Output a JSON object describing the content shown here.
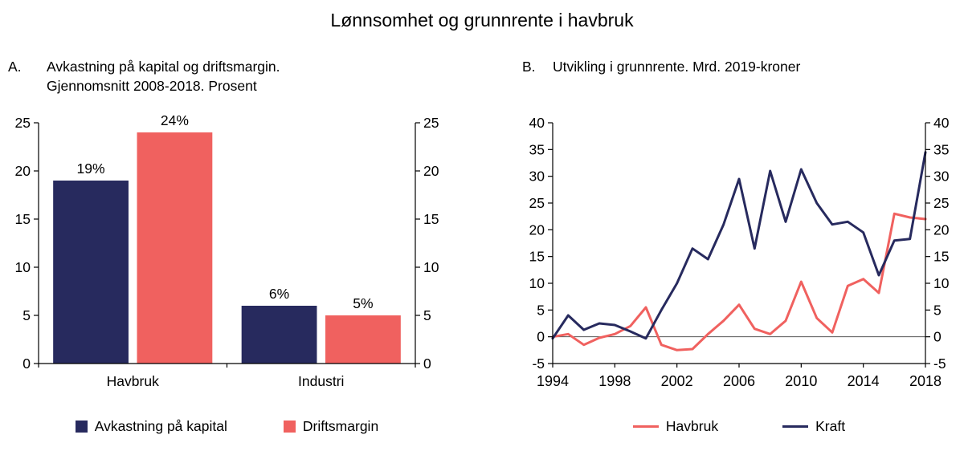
{
  "figure": {
    "title": "Lønnsomhet og grunnrente i havbruk",
    "panel_a": {
      "label": "A.",
      "heading_line1": "Avkastning på kapital og driftsmargin.",
      "heading_line2": "Gjennomsnitt 2008-2018. Prosent"
    },
    "panel_b": {
      "label": "B.",
      "heading": "Utvikling i grunnrente. Mrd. 2019-kroner"
    }
  },
  "colors": {
    "navy": "#272a5e",
    "coral": "#f0615f",
    "axis": "#000000",
    "zero_line": "#555555",
    "text": "#000000"
  },
  "chart_data": [
    {
      "type": "bar",
      "panel": "A",
      "title": "Avkastning på kapital og driftsmargin. Gjennomsnitt 2008-2018. Prosent",
      "categories": [
        "Havbruk",
        "Industri"
      ],
      "series": [
        {
          "name": "Avkastning på kapital",
          "color": "#272a5e",
          "values": [
            19,
            6
          ]
        },
        {
          "name": "Driftsmargin",
          "color": "#f0615f",
          "values": [
            24,
            5
          ]
        }
      ],
      "value_label_suffix": "%",
      "value_labels": [
        [
          "19%",
          "6%"
        ],
        [
          "24%",
          "5%"
        ]
      ],
      "ylim": [
        0,
        25
      ],
      "yticks": [
        0,
        5,
        10,
        15,
        20,
        25
      ],
      "yaxis_sides": "both",
      "legend_position": "bottom"
    },
    {
      "type": "line",
      "panel": "B",
      "title": "Utvikling i grunnrente. Mrd. 2019-kroner",
      "x": [
        1994,
        1995,
        1996,
        1997,
        1998,
        1999,
        2000,
        2001,
        2002,
        2003,
        2004,
        2005,
        2006,
        2007,
        2008,
        2009,
        2010,
        2011,
        2012,
        2013,
        2014,
        2015,
        2016,
        2017,
        2018
      ],
      "series": [
        {
          "name": "Havbruk",
          "color": "#f0615f",
          "values": [
            0,
            0.5,
            -1.5,
            -0.2,
            0.5,
            2,
            5.5,
            -1.5,
            -2.5,
            -2.3,
            0.5,
            3,
            6,
            1.5,
            0.5,
            3,
            10.3,
            3.5,
            0.8,
            9.5,
            10.8,
            8.2,
            23,
            22.3,
            22
          ]
        },
        {
          "name": "Kraft",
          "color": "#272a5e",
          "values": [
            -0.3,
            4,
            1.3,
            2.5,
            2.2,
            1,
            -0.3,
            5,
            10,
            16.5,
            14.5,
            21,
            29.5,
            16.5,
            31,
            21.5,
            31.3,
            25,
            21,
            21.5,
            19.5,
            11.5,
            18,
            18.3,
            34.5
          ]
        }
      ],
      "ylim": [
        -5,
        40
      ],
      "yticks": [
        -5,
        0,
        5,
        10,
        15,
        20,
        25,
        30,
        35,
        40
      ],
      "xticks": [
        1994,
        1998,
        2002,
        2006,
        2010,
        2014,
        2018
      ],
      "zero_line": true,
      "yaxis_sides": "both",
      "legend_position": "bottom"
    }
  ]
}
